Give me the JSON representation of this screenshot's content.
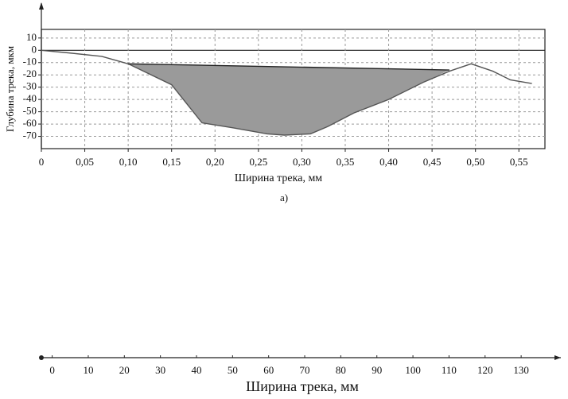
{
  "chart_data": [
    {
      "type": "line",
      "xlabel": "Ширина трека, мм",
      "ylabel": "Глубина трека, мкм",
      "caption": "а)",
      "xlim": [
        0,
        0.58
      ],
      "ylim": [
        -80,
        17
      ],
      "xticks": [
        0,
        {
          "value": 0.05,
          "label": "0,05"
        },
        {
          "value": 0.1,
          "label": "0,10"
        },
        {
          "value": 0.15,
          "label": "0,15"
        },
        {
          "value": 0.2,
          "label": "0,20"
        },
        {
          "value": 0.25,
          "label": "0,25"
        },
        {
          "value": 0.3,
          "label": "0,30"
        },
        {
          "value": 0.35,
          "label": "0,35"
        },
        {
          "value": 0.4,
          "label": "0,40"
        },
        {
          "value": 0.45,
          "label": "0,45"
        },
        {
          "value": 0.5,
          "label": "0,50"
        },
        {
          "value": 0.55,
          "label": "0,55"
        }
      ],
      "yticks": [
        10,
        0,
        -10,
        -20,
        -30,
        -40,
        -50,
        -60,
        -70
      ],
      "grid": true,
      "series": [
        {
          "color": "#555555",
          "x": [
            0,
            0.03,
            0.07,
            0.1,
            0.15,
            0.185,
            0.22,
            0.26,
            0.28,
            0.31,
            0.33,
            0.36,
            0.4,
            0.44,
            0.47,
            0.495,
            0.52,
            0.54,
            0.565
          ],
          "values": [
            0,
            -2,
            -5,
            -11,
            -28,
            -59,
            -63,
            -68,
            -69,
            -68,
            -62,
            -51,
            -40,
            -26,
            -17,
            -11,
            -17,
            -24,
            -27
          ]
        },
        {
          "color": "#222222",
          "fill": "#9a9a9a",
          "x": [
            0.1,
            0.47
          ],
          "values": [
            -11,
            -16
          ]
        }
      ]
    },
    {
      "type": "line",
      "xlabel": "Ширина трека, мм",
      "xlim": [
        -3,
        141
      ],
      "xticks": [
        0,
        10,
        20,
        30,
        40,
        50,
        60,
        70,
        80,
        90,
        100,
        110,
        120,
        130
      ]
    }
  ]
}
